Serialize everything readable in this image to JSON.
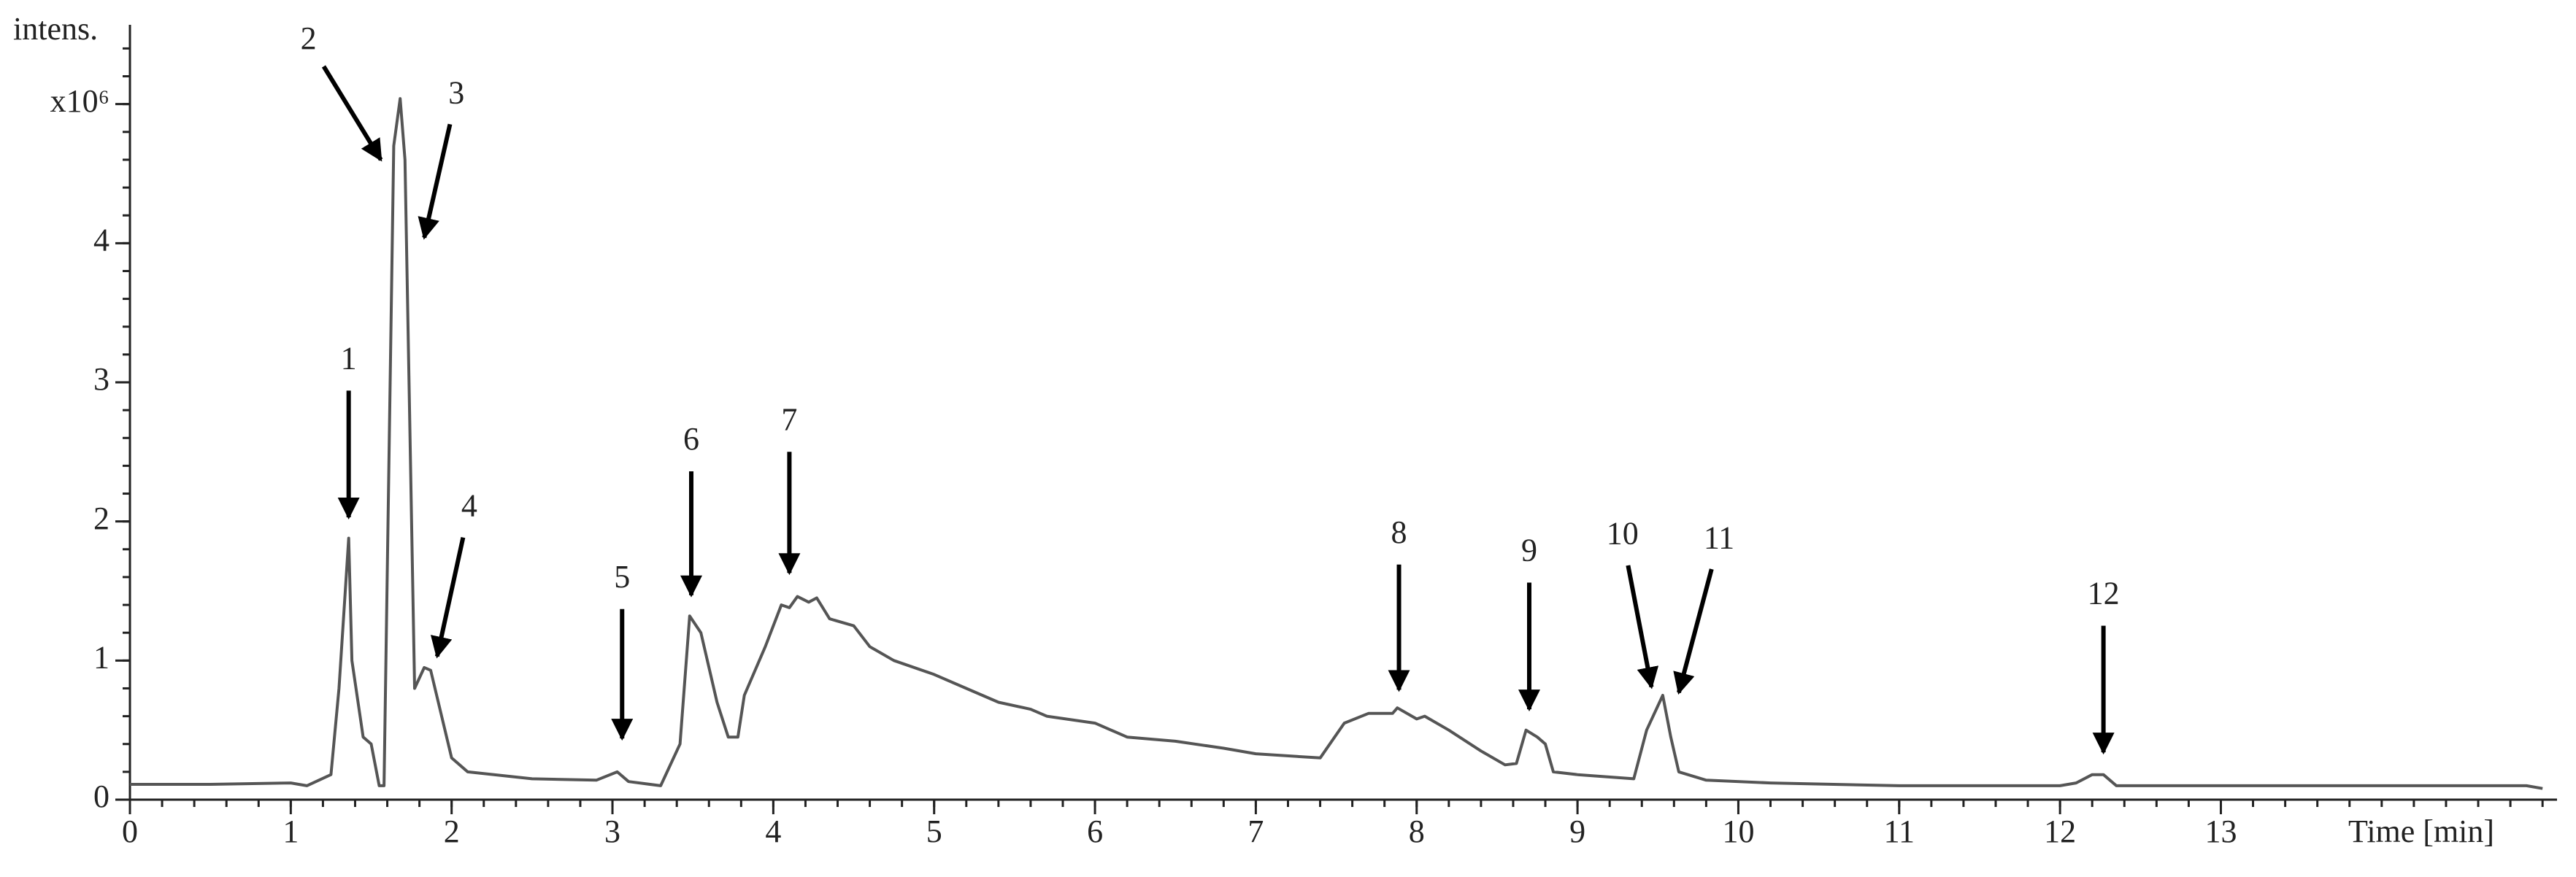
{
  "chart_data": {
    "type": "line",
    "y_label": "intens.",
    "x_label": "Time [min]",
    "x": [
      0,
      0.5,
      1.0,
      1.1,
      1.25,
      1.3,
      1.36,
      1.38,
      1.45,
      1.5,
      1.55,
      1.58,
      1.64,
      1.68,
      1.71,
      1.77,
      1.83,
      1.87,
      2.0,
      2.1,
      2.5,
      2.9,
      3.03,
      3.1,
      3.3,
      3.42,
      3.48,
      3.55,
      3.65,
      3.72,
      3.78,
      3.82,
      3.95,
      4.05,
      4.1,
      4.15,
      4.22,
      4.27,
      4.35,
      4.5,
      4.6,
      4.75,
      5.0,
      5.2,
      5.4,
      5.6,
      5.7,
      6.0,
      6.2,
      6.5,
      6.8,
      7.0,
      7.4,
      7.55,
      7.7,
      7.85,
      7.88,
      8.0,
      8.05,
      8.2,
      8.4,
      8.55,
      8.62,
      8.68,
      8.75,
      8.8,
      8.85,
      9.0,
      9.35,
      9.43,
      9.53,
      9.58,
      9.63,
      9.8,
      10.2,
      11.0,
      12.0,
      12.1,
      12.2,
      12.27,
      12.35,
      13.0,
      14.0,
      14.9,
      15.0
    ],
    "values": [
      0.11,
      0.11,
      0.12,
      0.1,
      0.18,
      0.8,
      1.88,
      1.0,
      0.45,
      0.4,
      0.1,
      0.1,
      4.7,
      5.04,
      4.6,
      0.8,
      0.95,
      0.93,
      0.3,
      0.2,
      0.15,
      0.14,
      0.2,
      0.13,
      0.1,
      0.4,
      1.32,
      1.2,
      0.7,
      0.45,
      0.45,
      0.75,
      1.1,
      1.4,
      1.38,
      1.46,
      1.42,
      1.45,
      1.3,
      1.25,
      1.1,
      1.0,
      0.9,
      0.8,
      0.7,
      0.65,
      0.6,
      0.55,
      0.45,
      0.42,
      0.37,
      0.33,
      0.3,
      0.55,
      0.62,
      0.62,
      0.66,
      0.58,
      0.6,
      0.5,
      0.35,
      0.25,
      0.26,
      0.5,
      0.45,
      0.4,
      0.2,
      0.18,
      0.15,
      0.5,
      0.75,
      0.45,
      0.2,
      0.14,
      0.12,
      0.1,
      0.1,
      0.12,
      0.18,
      0.18,
      0.1,
      0.1,
      0.1,
      0.1,
      0.08
    ],
    "color": "#555555",
    "xlim": [
      0,
      15.09
    ],
    "ylim": [
      0,
      5.57
    ],
    "xticks": [
      0,
      1,
      2,
      3,
      4,
      5,
      6,
      7,
      8,
      9,
      10,
      11,
      12,
      13
    ],
    "yticks": [
      0,
      1,
      2,
      3,
      4,
      {
        "value": 5,
        "label": "x10⁶"
      }
    ],
    "xminorticks": [
      0,
      0.2,
      0.4,
      0.6,
      0.8,
      1,
      1.2,
      1.4,
      1.6,
      1.8,
      2,
      2.2,
      2.4,
      2.6,
      2.8,
      3,
      3.2,
      3.4,
      3.6,
      3.8,
      4,
      4.2,
      4.4,
      4.6,
      4.8,
      5,
      5.2,
      5.4,
      5.6,
      5.8,
      6,
      6.2,
      6.4,
      6.6,
      6.8,
      7,
      7.2,
      7.4,
      7.6,
      7.8,
      8,
      8.2,
      8.4,
      8.6,
      8.8,
      9,
      9.2,
      9.4,
      9.6,
      9.8,
      10,
      10.2,
      10.4,
      10.6,
      10.8,
      11,
      11.2,
      11.4,
      11.6,
      11.8,
      12,
      12.2,
      12.4,
      12.6,
      12.8,
      13,
      13.2,
      13.4,
      13.6,
      13.8,
      14,
      14.2,
      14.4,
      14.6,
      14.8,
      15
    ],
    "yminorticks": [
      0,
      0.2,
      0.4,
      0.6,
      0.8,
      1,
      1.2,
      1.4,
      1.6,
      1.8,
      2,
      2.2,
      2.4,
      2.6,
      2.8,
      3,
      3.2,
      3.4,
      3.6,
      3.8,
      4,
      4.2,
      4.4,
      4.6,
      4.8,
      5,
      5.2,
      5.4
    ],
    "annotations": [
      {
        "text": "1",
        "x": 1.36,
        "y": 2.03,
        "text_x": 1.36,
        "text_y": 3.15
      },
      {
        "text": "2",
        "x": 1.56,
        "y": 4.6,
        "text_x": 1.11,
        "text_y": 5.45
      },
      {
        "text": "3",
        "x": 1.83,
        "y": 4.04,
        "text_x": 2.03,
        "text_y": 5.06
      },
      {
        "text": "4",
        "x": 1.91,
        "y": 1.03,
        "text_x": 2.11,
        "text_y": 2.09
      },
      {
        "text": "5",
        "x": 3.06,
        "y": 0.44,
        "text_x": 3.06,
        "text_y": 1.58
      },
      {
        "text": "6",
        "x": 3.49,
        "y": 1.47,
        "text_x": 3.49,
        "text_y": 2.57
      },
      {
        "text": "7",
        "x": 4.1,
        "y": 1.63,
        "text_x": 4.1,
        "text_y": 2.71
      },
      {
        "text": "8",
        "x": 7.89,
        "y": 0.79,
        "text_x": 7.89,
        "text_y": 1.9
      },
      {
        "text": "9",
        "x": 8.7,
        "y": 0.65,
        "text_x": 8.7,
        "text_y": 1.77
      },
      {
        "text": "10",
        "x": 9.46,
        "y": 0.81,
        "text_x": 9.28,
        "text_y": 1.89
      },
      {
        "text": "11",
        "x": 9.63,
        "y": 0.77,
        "text_x": 9.88,
        "text_y": 1.86
      },
      {
        "text": "12",
        "x": 12.27,
        "y": 0.34,
        "text_x": 12.27,
        "text_y": 1.46
      }
    ]
  }
}
